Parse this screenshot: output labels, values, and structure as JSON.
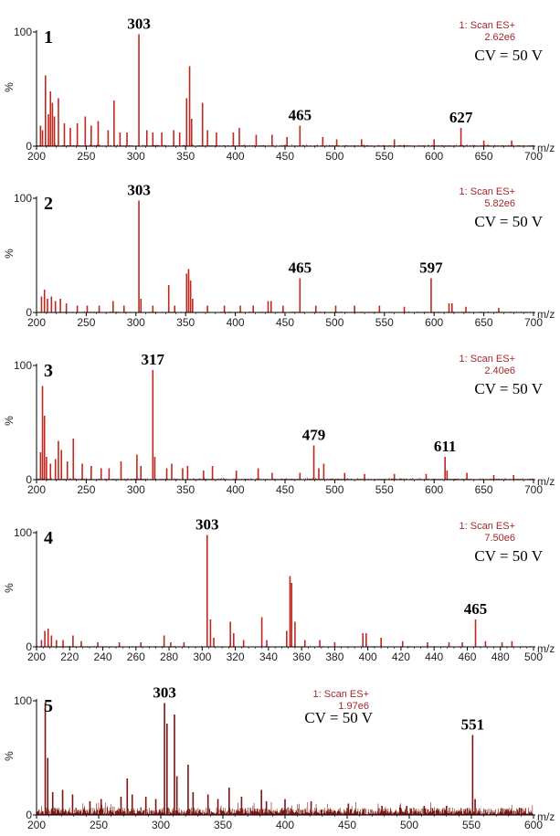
{
  "chart_data": [
    {
      "type": "line",
      "panel_label": "1",
      "scan_label": "1: Scan ES+",
      "intensity": "2.62e6",
      "cv_label": "CV = 50 V",
      "ylabel": "%",
      "xlabel": "m/z",
      "xlim": [
        200,
        700
      ],
      "ylim": [
        0,
        100
      ],
      "xticks": [
        200,
        250,
        300,
        350,
        400,
        450,
        500,
        550,
        600,
        650,
        700
      ],
      "yticks": [
        0,
        100
      ],
      "color": "#c0281f",
      "noise": [
        0.0,
        1.0
      ],
      "peaks": [
        [
          204,
          18
        ],
        [
          206,
          14
        ],
        [
          209,
          62
        ],
        [
          212,
          28
        ],
        [
          214,
          48
        ],
        [
          216,
          38
        ],
        [
          218,
          26
        ],
        [
          222,
          42
        ],
        [
          228,
          20
        ],
        [
          234,
          16
        ],
        [
          241,
          20
        ],
        [
          249,
          26
        ],
        [
          255,
          18
        ],
        [
          262,
          22
        ],
        [
          272,
          14
        ],
        [
          278,
          40
        ],
        [
          284,
          12
        ],
        [
          291,
          12
        ],
        [
          303,
          98
        ],
        [
          311,
          14
        ],
        [
          317,
          12
        ],
        [
          326,
          12
        ],
        [
          338,
          14
        ],
        [
          344,
          12
        ],
        [
          351,
          42
        ],
        [
          354,
          70
        ],
        [
          356,
          24
        ],
        [
          367,
          38
        ],
        [
          372,
          14
        ],
        [
          381,
          12
        ],
        [
          398,
          12
        ],
        [
          404,
          16
        ],
        [
          421,
          10
        ],
        [
          437,
          10
        ],
        [
          452,
          8
        ],
        [
          465,
          18
        ],
        [
          488,
          8
        ],
        [
          502,
          6
        ],
        [
          527,
          6
        ],
        [
          560,
          6
        ],
        [
          600,
          6
        ],
        [
          627,
          16
        ],
        [
          650,
          5
        ],
        [
          678,
          5
        ]
      ],
      "labels": [
        {
          "x": 303,
          "text": "303"
        },
        {
          "x": 465,
          "text": "465"
        },
        {
          "x": 627,
          "text": "627"
        }
      ]
    },
    {
      "type": "line",
      "panel_label": "2",
      "scan_label": "1: Scan ES+",
      "intensity": "5.82e6",
      "cv_label": "CV = 50 V",
      "ylabel": "%",
      "xlabel": "m/z",
      "xlim": [
        200,
        700
      ],
      "ylim": [
        0,
        100
      ],
      "xticks": [
        200,
        250,
        300,
        350,
        400,
        450,
        500,
        550,
        600,
        650,
        700
      ],
      "yticks": [
        0,
        100
      ],
      "color": "#c0281f",
      "noise": [
        0.0,
        0.6
      ],
      "peaks": [
        [
          205,
          14
        ],
        [
          208,
          20
        ],
        [
          211,
          12
        ],
        [
          215,
          14
        ],
        [
          219,
          10
        ],
        [
          224,
          12
        ],
        [
          230,
          8
        ],
        [
          241,
          6
        ],
        [
          251,
          6
        ],
        [
          263,
          6
        ],
        [
          277,
          10
        ],
        [
          288,
          6
        ],
        [
          303,
          98
        ],
        [
          305,
          12
        ],
        [
          317,
          6
        ],
        [
          333,
          24
        ],
        [
          339,
          6
        ],
        [
          351,
          34
        ],
        [
          353,
          38
        ],
        [
          355,
          28
        ],
        [
          357,
          12
        ],
        [
          372,
          6
        ],
        [
          389,
          6
        ],
        [
          405,
          6
        ],
        [
          418,
          6
        ],
        [
          433,
          10
        ],
        [
          436,
          10
        ],
        [
          448,
          6
        ],
        [
          465,
          30
        ],
        [
          481,
          6
        ],
        [
          501,
          6
        ],
        [
          520,
          6
        ],
        [
          545,
          6
        ],
        [
          570,
          5
        ],
        [
          597,
          30
        ],
        [
          615,
          8
        ],
        [
          618,
          8
        ],
        [
          632,
          5
        ],
        [
          665,
          4
        ]
      ],
      "labels": [
        {
          "x": 303,
          "text": "303"
        },
        {
          "x": 465,
          "text": "465"
        },
        {
          "x": 597,
          "text": "597"
        }
      ]
    },
    {
      "type": "line",
      "panel_label": "3",
      "scan_label": "1: Scan ES+",
      "intensity": "2.40e6",
      "cv_label": "CV = 50 V",
      "ylabel": "%",
      "xlabel": "m/z",
      "xlim": [
        200,
        700
      ],
      "ylim": [
        0,
        100
      ],
      "xticks": [
        200,
        250,
        300,
        350,
        400,
        450,
        500,
        550,
        600,
        650,
        700
      ],
      "yticks": [
        0,
        100
      ],
      "color": "#c0281f",
      "noise": [
        0.0,
        1.0
      ],
      "peaks": [
        [
          204,
          24
        ],
        [
          206,
          82
        ],
        [
          208,
          56
        ],
        [
          210,
          20
        ],
        [
          214,
          14
        ],
        [
          219,
          18
        ],
        [
          222,
          34
        ],
        [
          225,
          26
        ],
        [
          231,
          16
        ],
        [
          237,
          36
        ],
        [
          246,
          14
        ],
        [
          255,
          12
        ],
        [
          265,
          10
        ],
        [
          273,
          10
        ],
        [
          285,
          16
        ],
        [
          301,
          22
        ],
        [
          305,
          12
        ],
        [
          317,
          96
        ],
        [
          319,
          20
        ],
        [
          331,
          10
        ],
        [
          336,
          14
        ],
        [
          347,
          10
        ],
        [
          352,
          12
        ],
        [
          368,
          8
        ],
        [
          377,
          12
        ],
        [
          401,
          8
        ],
        [
          423,
          10
        ],
        [
          437,
          6
        ],
        [
          465,
          6
        ],
        [
          479,
          30
        ],
        [
          484,
          10
        ],
        [
          489,
          14
        ],
        [
          510,
          6
        ],
        [
          530,
          5
        ],
        [
          560,
          5
        ],
        [
          592,
          5
        ],
        [
          611,
          20
        ],
        [
          613,
          8
        ],
        [
          633,
          6
        ],
        [
          660,
          4
        ],
        [
          680,
          4
        ]
      ],
      "labels": [
        {
          "x": 317,
          "text": "317"
        },
        {
          "x": 479,
          "text": "479"
        },
        {
          "x": 611,
          "text": "611"
        }
      ]
    },
    {
      "type": "line",
      "panel_label": "4",
      "scan_label": "1: Scan ES+",
      "intensity": "7.50e6",
      "cv_label": "CV = 50 V",
      "ylabel": "%",
      "xlabel": "m/z",
      "xlim": [
        200,
        500
      ],
      "ylim": [
        0,
        100
      ],
      "xticks": [
        200,
        220,
        240,
        260,
        280,
        300,
        320,
        340,
        360,
        380,
        400,
        420,
        440,
        460,
        480,
        500
      ],
      "yticks": [
        0,
        100
      ],
      "color": "#c0281f",
      "noise": [
        0.0,
        0.5
      ],
      "peaks": [
        [
          203,
          6
        ],
        [
          205,
          14
        ],
        [
          207,
          16
        ],
        [
          209,
          10
        ],
        [
          212,
          6
        ],
        [
          216,
          6
        ],
        [
          222,
          10
        ],
        [
          227,
          5
        ],
        [
          237,
          4
        ],
        [
          250,
          4
        ],
        [
          263,
          4
        ],
        [
          277,
          10
        ],
        [
          281,
          4
        ],
        [
          289,
          4
        ],
        [
          303,
          98
        ],
        [
          305,
          24
        ],
        [
          307,
          8
        ],
        [
          317,
          22
        ],
        [
          319,
          12
        ],
        [
          325,
          6
        ],
        [
          336,
          26
        ],
        [
          339,
          6
        ],
        [
          351,
          14
        ],
        [
          353,
          62
        ],
        [
          354,
          56
        ],
        [
          356,
          22
        ],
        [
          362,
          6
        ],
        [
          371,
          6
        ],
        [
          380,
          4
        ],
        [
          397,
          12
        ],
        [
          399,
          12
        ],
        [
          408,
          8
        ],
        [
          421,
          5
        ],
        [
          436,
          4
        ],
        [
          449,
          4
        ],
        [
          457,
          4
        ],
        [
          465,
          24
        ],
        [
          471,
          5
        ],
        [
          481,
          4
        ],
        [
          487,
          5
        ]
      ],
      "labels": [
        {
          "x": 303,
          "text": "303"
        },
        {
          "x": 465,
          "text": "465"
        }
      ]
    },
    {
      "type": "line",
      "panel_label": "5",
      "scan_label": "1: Scan ES+",
      "intensity": "1.97e6",
      "cv_label": "CV = 50 V",
      "ylabel": "%",
      "xlabel": "m/z",
      "xlim": [
        200,
        600
      ],
      "ylim": [
        0,
        100
      ],
      "xticks": [
        200,
        250,
        300,
        350,
        400,
        450,
        500,
        550,
        600
      ],
      "yticks": [
        0,
        100
      ],
      "color": "#7a1512",
      "noise": [
        0.5,
        6.5
      ],
      "peaks": [
        [
          207,
          98
        ],
        [
          209,
          50
        ],
        [
          213,
          20
        ],
        [
          221,
          22
        ],
        [
          229,
          18
        ],
        [
          243,
          12
        ],
        [
          252,
          14
        ],
        [
          268,
          16
        ],
        [
          273,
          32
        ],
        [
          277,
          18
        ],
        [
          288,
          16
        ],
        [
          296,
          14
        ],
        [
          303,
          98
        ],
        [
          305,
          80
        ],
        [
          311,
          88
        ],
        [
          313,
          34
        ],
        [
          322,
          44
        ],
        [
          326,
          20
        ],
        [
          338,
          18
        ],
        [
          346,
          14
        ],
        [
          355,
          24
        ],
        [
          365,
          16
        ],
        [
          381,
          22
        ],
        [
          385,
          12
        ],
        [
          400,
          14
        ],
        [
          421,
          12
        ],
        [
          451,
          10
        ],
        [
          478,
          8
        ],
        [
          498,
          8
        ],
        [
          512,
          8
        ],
        [
          530,
          8
        ],
        [
          551,
          70
        ],
        [
          553,
          14
        ],
        [
          574,
          6
        ],
        [
          590,
          6
        ]
      ],
      "labels": [
        {
          "x": 303,
          "text": "303"
        },
        {
          "x": 551,
          "text": "551"
        }
      ]
    }
  ]
}
